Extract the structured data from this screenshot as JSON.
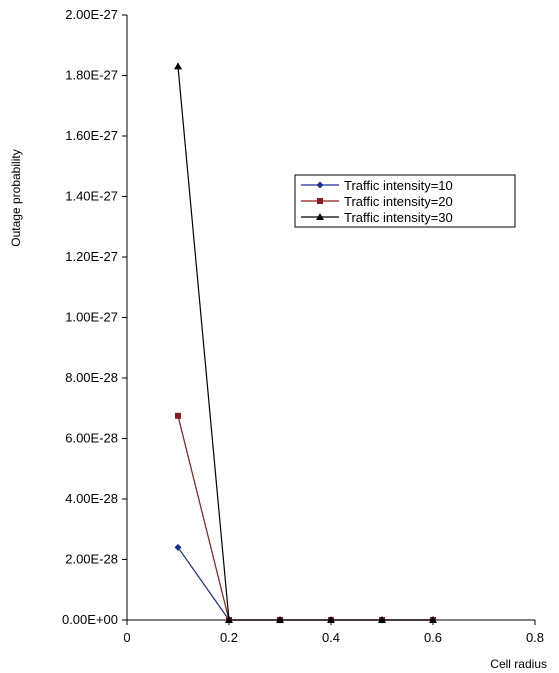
{
  "chart_data": {
    "type": "line",
    "title": "",
    "xlabel": "Cell radius",
    "ylabel": "Outage probability",
    "xlim": [
      0,
      0.8
    ],
    "ylim": [
      0,
      2e-27
    ],
    "x_ticks": [
      "0",
      "0.2",
      "0.4",
      "0.6",
      "0.8"
    ],
    "x_tick_values": [
      0,
      0.2,
      0.4,
      0.6,
      0.8
    ],
    "y_ticks": [
      "0.00E+00",
      "2.00E-28",
      "4.00E-28",
      "6.00E-28",
      "8.00E-28",
      "1.00E-27",
      "1.20E-27",
      "1.40E-27",
      "1.60E-27",
      "1.80E-27",
      "2.00E-27"
    ],
    "y_tick_values": [
      0,
      2e-28,
      4e-28,
      6e-28,
      8e-28,
      1e-27,
      1.2e-27,
      1.4e-27,
      1.6e-27,
      1.8e-27,
      2e-27
    ],
    "grid": false,
    "legend_position": "right",
    "x": [
      0.1,
      0.2,
      0.3,
      0.4,
      0.5,
      0.6
    ],
    "series": [
      {
        "name": "Traffic intensity=10",
        "color": "#1f2f8f",
        "marker": "diamond",
        "values": [
          2.4e-28,
          0,
          0,
          0,
          0,
          0
        ]
      },
      {
        "name": "Traffic intensity=20",
        "color": "#8b1a1a",
        "marker": "square",
        "values": [
          6.75e-28,
          0,
          0,
          0,
          0,
          0
        ]
      },
      {
        "name": "Traffic intensity=30",
        "color": "#000000",
        "marker": "triangle",
        "values": [
          1.83e-27,
          0,
          0,
          0,
          0,
          0
        ]
      }
    ]
  }
}
